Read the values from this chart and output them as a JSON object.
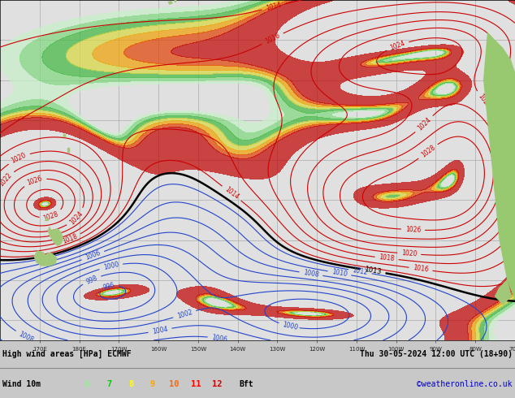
{
  "title_line1": "High wind areas [HPa] ECMWF",
  "title_date": "Thu 30-05-2024 12:00 UTC (18+90)",
  "subtitle": "Wind 10m",
  "legend_values": [
    "6",
    "7",
    "8",
    "9",
    "10",
    "11",
    "12"
  ],
  "legend_colors": [
    "#90ee90",
    "#00cc00",
    "#ffff00",
    "#ffa500",
    "#ff6600",
    "#ff0000",
    "#cc0000"
  ],
  "legend_suffix": "Bft",
  "credit": "©weatheronline.co.uk",
  "bg_color": "#c8c8c8",
  "map_bg": "#dcdcdc",
  "figsize": [
    6.34,
    4.9
  ],
  "dpi": 100,
  "lon_min": 160,
  "lon_max": 290,
  "lat_min": -65,
  "lat_max": 20,
  "bottom_bar_color": "#c0c0c0"
}
